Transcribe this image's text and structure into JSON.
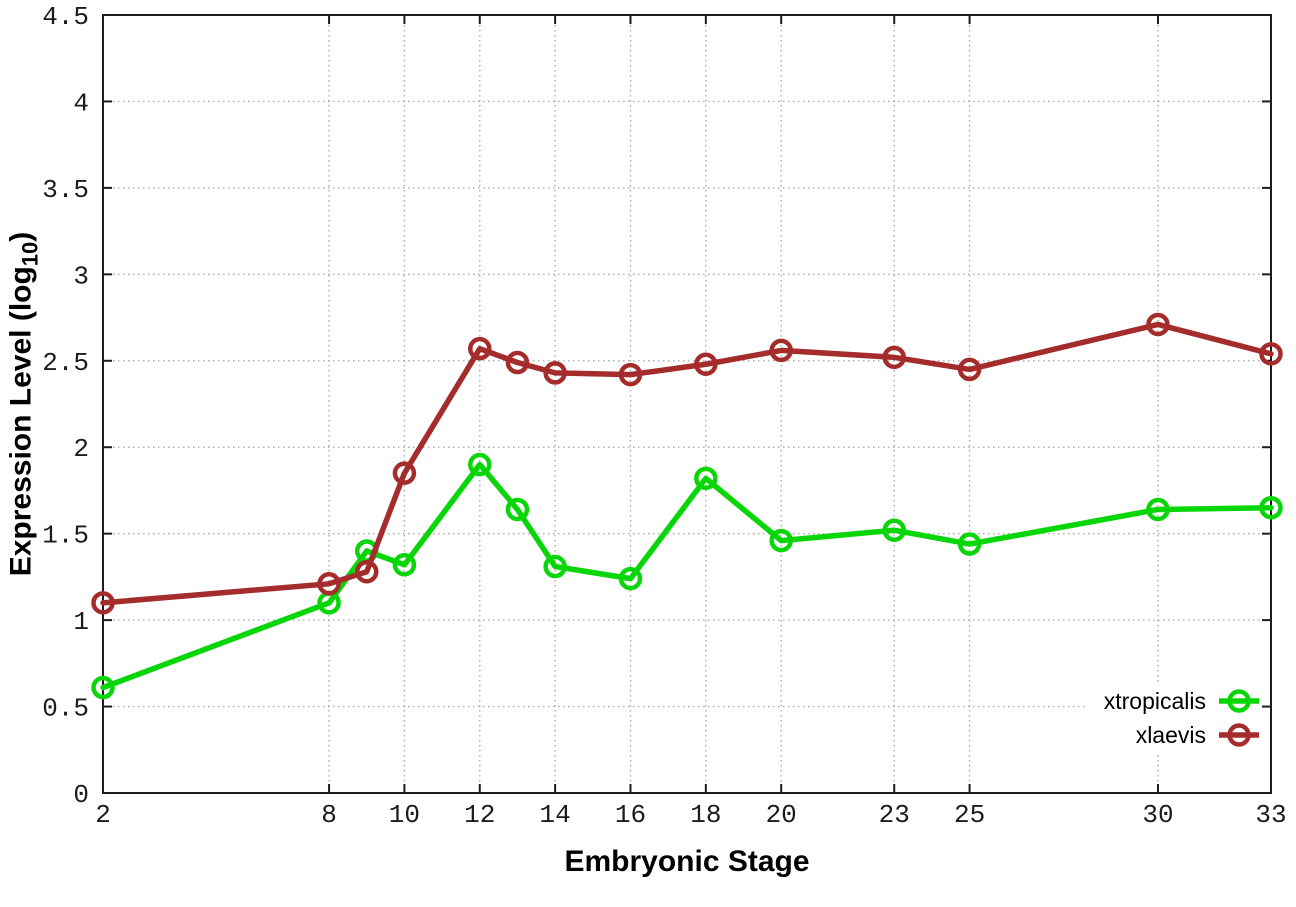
{
  "page": {
    "background": "#ffffff"
  },
  "chart_data": {
    "type": "line",
    "title": "",
    "xlabel": "Embryonic Stage",
    "ylabel": "Expression Level (log10)",
    "ylabel_parts": {
      "pre": "Expression Level (log",
      "sub": "10",
      "post": ")"
    },
    "xlim": [
      2,
      33
    ],
    "ylim": [
      0,
      4.5
    ],
    "xticks": {
      "values": [
        2,
        8,
        10,
        12,
        14,
        16,
        18,
        20,
        23,
        25,
        30,
        33
      ],
      "labels": [
        "2",
        "8",
        "10",
        "12",
        "14",
        "16",
        "18",
        "20",
        "23",
        "25",
        "30",
        "33"
      ]
    },
    "yticks": {
      "values": [
        0,
        0.5,
        1,
        1.5,
        2,
        2.5,
        3,
        3.5,
        4,
        4.5
      ],
      "labels": [
        "0",
        "0.5",
        "1",
        "1.5",
        "2",
        "2.5",
        "3",
        "3.5",
        "4",
        "4.5"
      ]
    },
    "grid": "dotted",
    "grid_color": "#aaaaaa",
    "axis_color": "#1c1c1c",
    "legend": {
      "position": "inside-bottom-right",
      "entries": [
        "xtropicalis",
        "xlaevis"
      ]
    },
    "x": [
      2,
      8,
      9,
      10,
      12,
      13,
      14,
      16,
      18,
      20,
      23,
      25,
      30,
      33
    ],
    "series": [
      {
        "name": "xtropicalis",
        "color": "#09d609",
        "marker": "open-circle",
        "values": [
          0.61,
          1.1,
          1.4,
          1.32,
          1.9,
          1.64,
          1.31,
          1.24,
          1.82,
          1.46,
          1.52,
          1.44,
          1.64,
          1.65
        ]
      },
      {
        "name": "xlaevis",
        "color": "#a52c2c",
        "marker": "open-circle",
        "values": [
          1.1,
          1.21,
          1.28,
          1.85,
          2.57,
          2.49,
          2.43,
          2.42,
          2.48,
          2.56,
          2.52,
          2.45,
          2.71,
          2.54
        ]
      }
    ]
  }
}
